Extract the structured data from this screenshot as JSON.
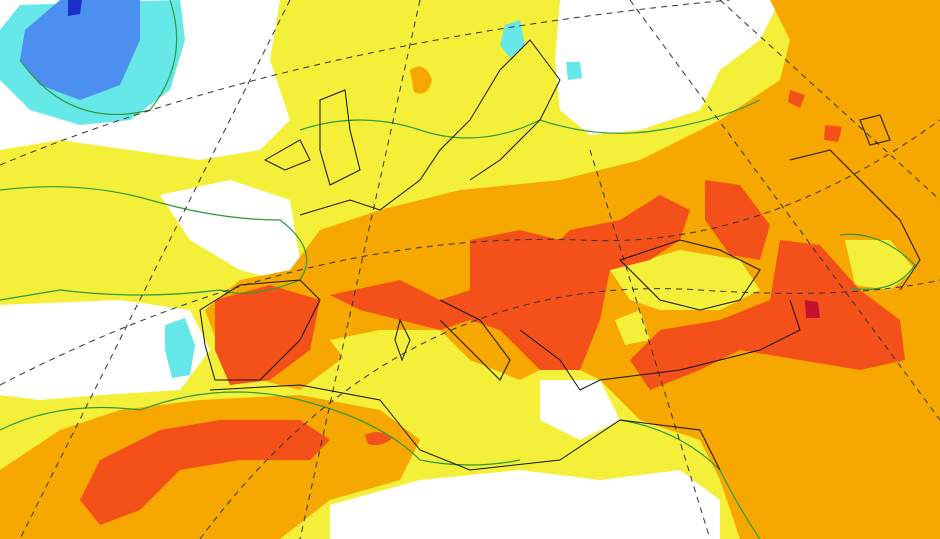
{
  "map": {
    "type": "temperature-anomaly-field",
    "colors": {
      "background": "#ffffff",
      "warm1": "#f4f03a",
      "warm2": "#f6a800",
      "warm3": "#f4511a",
      "warm4": "#c4122f",
      "cool1": "#66e8e8",
      "cool2": "#4d8ff0",
      "cool3": "#1e2fc8",
      "contour": "#2f9a3c",
      "coastline": "#111111",
      "graticule": "#333333"
    },
    "layers": [
      "shaded-anomaly",
      "contour-lines",
      "coastlines",
      "graticule"
    ]
  }
}
